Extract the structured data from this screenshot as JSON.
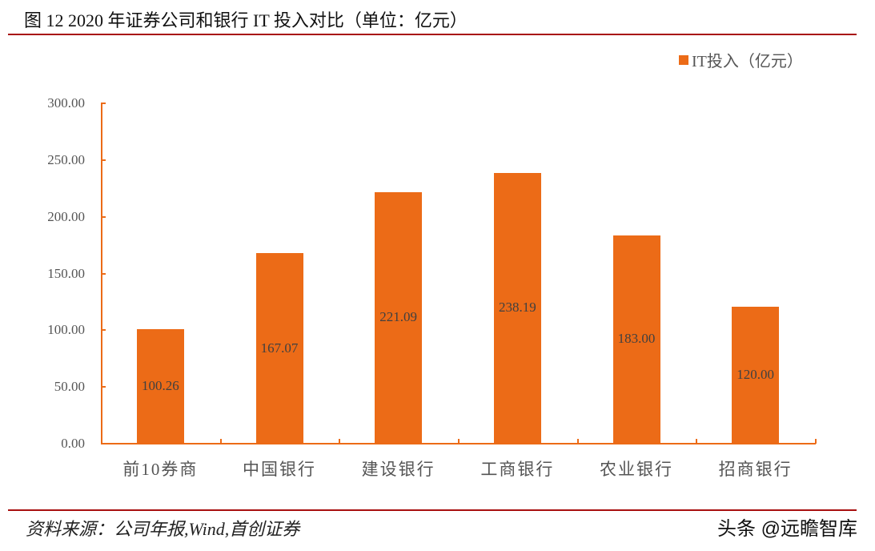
{
  "header": {
    "title": "图  12 2020 年证券公司和银行 IT 投入对比（单位：亿元）"
  },
  "footer": {
    "source": "资料来源：公司年报,Wind,首创证券",
    "watermark": "头条 @远瞻智库"
  },
  "colors": {
    "bar": "#EC6B17",
    "axis": "#EC6B17",
    "rule": "#A80F0F"
  },
  "chart_data": {
    "type": "bar",
    "title": "2020年证券公司和银行IT投入对比（单位：亿元）",
    "xlabel": "",
    "ylabel": "",
    "ylim": [
      0,
      300
    ],
    "yticks": [
      0,
      50,
      100,
      150,
      200,
      250,
      300
    ],
    "ytick_labels": [
      "0.00",
      "50.00",
      "100.00",
      "150.00",
      "200.00",
      "250.00",
      "300.00"
    ],
    "grid": false,
    "legend_position": "top-right",
    "categories": [
      "前10券商",
      "中国银行",
      "建设银行",
      "工商银行",
      "农业银行",
      "招商银行"
    ],
    "series": [
      {
        "name": "IT投入（亿元）",
        "values": [
          100.26,
          167.07,
          221.09,
          238.19,
          183.0,
          120.0
        ],
        "data_labels": [
          "100.26",
          "167.07",
          "221.09",
          "238.19",
          "183.00",
          "120.00"
        ]
      }
    ]
  }
}
